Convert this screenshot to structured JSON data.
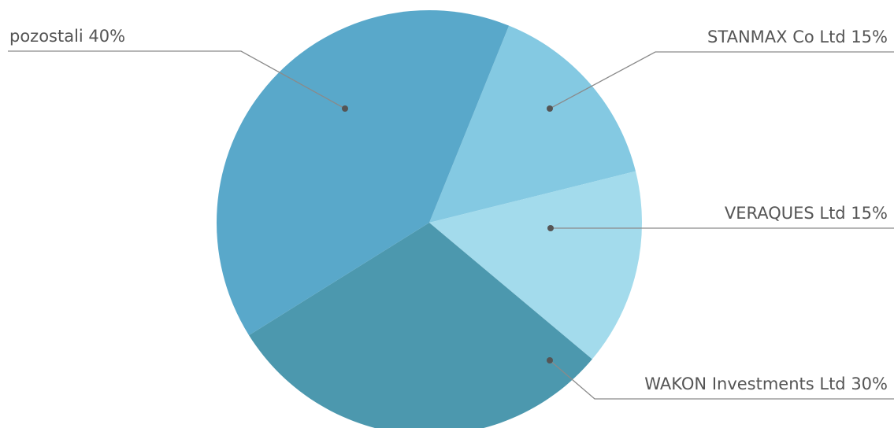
{
  "chart_data": {
    "type": "pie",
    "title": "",
    "start_angle_deg": -68,
    "direction": "clockwise",
    "slices": [
      {
        "label": "STANMAX Co Ltd 15%",
        "value": 15,
        "color": "#84c9e2"
      },
      {
        "label": "VERAQUES Ltd 15%",
        "value": 15,
        "color": "#a3dbec"
      },
      {
        "label": "WAKON Investments Ltd 30%",
        "value": 30,
        "color": "#4c98ae"
      },
      {
        "label": "pozostali 40%",
        "value": 40,
        "color": "#59a8ca"
      }
    ],
    "label_color": "#555555",
    "leader_color": "#8a8a8a"
  }
}
